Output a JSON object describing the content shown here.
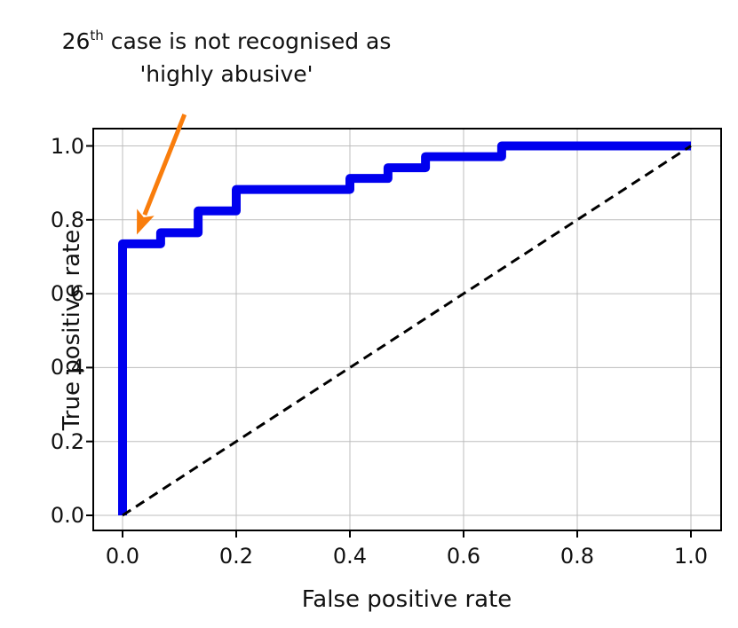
{
  "chart_data": {
    "type": "line",
    "subtype": "roc-curve",
    "title": "",
    "xlabel": "False positive rate",
    "ylabel": "True positive rate",
    "xlim": [
      -0.05,
      1.05
    ],
    "ylim": [
      -0.04,
      1.05
    ],
    "grid": true,
    "grid_color": "#bdbdbd",
    "frame_color": "#000000",
    "background_color": "#ffffff",
    "x_ticks": [
      0.0,
      0.2,
      0.4,
      0.6,
      0.8,
      1.0
    ],
    "y_ticks": [
      0.0,
      0.2,
      0.4,
      0.6,
      0.8,
      1.0
    ],
    "x_tick_labels": [
      "0.0",
      "0.2",
      "0.4",
      "0.6",
      "0.8",
      "1.0"
    ],
    "y_tick_labels": [
      "0.0",
      "0.2",
      "0.4",
      "0.6",
      "0.8",
      "1.0"
    ],
    "series": [
      {
        "name": "roc-step-curve",
        "color": "#0000ee",
        "line_width": 10,
        "style": "solid",
        "points": [
          [
            0.0,
            0.0
          ],
          [
            0.0,
            0.735
          ],
          [
            0.067,
            0.735
          ],
          [
            0.067,
            0.765
          ],
          [
            0.133,
            0.765
          ],
          [
            0.133,
            0.824
          ],
          [
            0.2,
            0.824
          ],
          [
            0.2,
            0.882
          ],
          [
            0.4,
            0.882
          ],
          [
            0.4,
            0.912
          ],
          [
            0.467,
            0.912
          ],
          [
            0.467,
            0.941
          ],
          [
            0.533,
            0.941
          ],
          [
            0.533,
            0.971
          ],
          [
            0.667,
            0.971
          ],
          [
            0.667,
            1.0
          ],
          [
            1.0,
            1.0
          ]
        ]
      },
      {
        "name": "chance-diagonal",
        "color": "#000000",
        "line_width": 3,
        "style": "dashed",
        "points": [
          [
            0.0,
            0.0
          ],
          [
            1.0,
            1.0
          ]
        ]
      }
    ],
    "annotation": {
      "case_number": "26",
      "ordinal_suffix": "th",
      "line1_rest": " case is not recognised as",
      "line2": "'highly abusive'",
      "text_color": "#111111",
      "arrow_color": "#f97d0c",
      "arrow_tail": [
        0.109,
        1.085
      ],
      "arrow_tip": [
        0.025,
        0.76
      ]
    }
  }
}
